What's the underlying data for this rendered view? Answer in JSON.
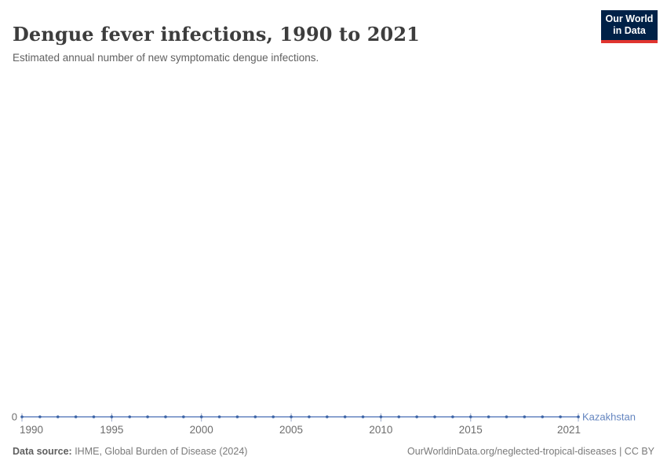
{
  "header": {
    "title": "Dengue fever infections, 1990 to 2021",
    "subtitle": "Estimated annual number of new symptomatic dengue infections.",
    "logo": {
      "line1": "Our World",
      "line2": "in Data",
      "bg_color": "#002147",
      "bar_color": "#e0342f"
    }
  },
  "chart_data": {
    "type": "line",
    "title": "Dengue fever infections, 1990 to 2021",
    "xlabel": "",
    "ylabel": "",
    "xlim": [
      1990,
      2021
    ],
    "x_ticks": [
      1990,
      1995,
      2000,
      2005,
      2010,
      2015,
      2021
    ],
    "y_zero_label": "0",
    "grid": false,
    "legend_position": "end-of-line",
    "x": [
      1990,
      1991,
      1992,
      1993,
      1994,
      1995,
      1996,
      1997,
      1998,
      1999,
      2000,
      2001,
      2002,
      2003,
      2004,
      2005,
      2006,
      2007,
      2008,
      2009,
      2010,
      2011,
      2012,
      2013,
      2014,
      2015,
      2016,
      2017,
      2018,
      2019,
      2020,
      2021
    ],
    "series": [
      {
        "name": "Kazakhstan",
        "color": "#6384bf",
        "marker_color": "#3a62a5",
        "values": [
          0,
          0,
          0,
          0,
          0,
          0,
          0,
          0,
          0,
          0,
          0,
          0,
          0,
          0,
          0,
          0,
          0,
          0,
          0,
          0,
          0,
          0,
          0,
          0,
          0,
          0,
          0,
          0,
          0,
          0,
          0,
          0
        ]
      }
    ],
    "colors": {
      "tick_mark": "#98a8c8",
      "tick_label": "#6d6d6d"
    }
  },
  "footer": {
    "source_label": "Data source:",
    "source_value": " IHME, Global Burden of Disease (2024)",
    "attribution": "OurWorldinData.org/neglected-tropical-diseases | CC BY"
  }
}
